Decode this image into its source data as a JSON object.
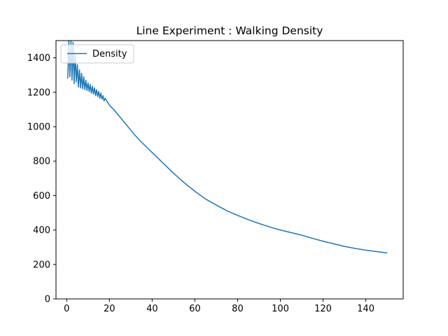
{
  "chart_data": {
    "type": "line",
    "title": "Line Experiment : Walking Density",
    "xlabel": "",
    "ylabel": "",
    "xlim": [
      -5,
      157.5
    ],
    "ylim": [
      0,
      1500
    ],
    "xticks": [
      0,
      20,
      40,
      60,
      80,
      100,
      120,
      140
    ],
    "yticks": [
      0,
      200,
      400,
      600,
      800,
      1000,
      1200,
      1400
    ],
    "grid": false,
    "legend": "upper-left",
    "line_color": "#1f77b4",
    "series": [
      {
        "name": "Density",
        "x": [
          0.5,
          1.0,
          1.5,
          2.0,
          2.5,
          3.0,
          3.5,
          4.0,
          4.5,
          5.0,
          5.5,
          6.0,
          6.5,
          7.0,
          7.5,
          8.0,
          8.5,
          9.0,
          9.5,
          10.0,
          10.5,
          11.0,
          11.5,
          12.0,
          12.5,
          13.0,
          13.5,
          14.0,
          14.5,
          15.0,
          15.5,
          16.0,
          16.5,
          17.0,
          17.5,
          18.0,
          19.0,
          20,
          22,
          24,
          26,
          28,
          30,
          32,
          35,
          40,
          45,
          50,
          55,
          60,
          65,
          70,
          75,
          80,
          85,
          90,
          95,
          100,
          105,
          110,
          115,
          120,
          125,
          130,
          135,
          140,
          145,
          150
        ],
        "y": [
          1280,
          1500,
          1290,
          1500,
          1270,
          1490,
          1250,
          1420,
          1260,
          1360,
          1230,
          1330,
          1225,
          1310,
          1220,
          1290,
          1215,
          1270,
          1210,
          1255,
          1205,
          1245,
          1195,
          1235,
          1190,
          1225,
          1180,
          1215,
          1175,
          1205,
          1165,
          1195,
          1160,
          1180,
          1150,
          1165,
          1145,
          1125,
          1100,
          1070,
          1040,
          1010,
          980,
          950,
          910,
          850,
          790,
          730,
          675,
          625,
          580,
          545,
          512,
          485,
          460,
          438,
          418,
          400,
          385,
          370,
          352,
          335,
          320,
          305,
          293,
          283,
          275,
          267
        ]
      }
    ]
  }
}
